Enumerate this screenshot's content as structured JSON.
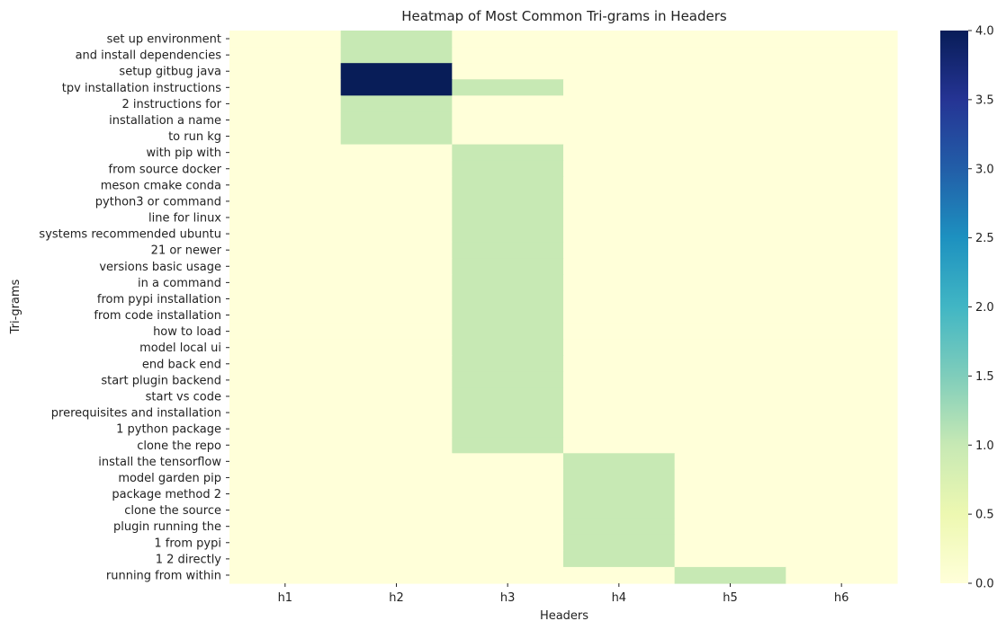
{
  "chart_data": {
    "type": "heatmap",
    "title": "Heatmap of Most Common Tri-grams in Headers",
    "xlabel": "Headers",
    "ylabel": "Tri-grams",
    "columns": [
      "h1",
      "h2",
      "h3",
      "h4",
      "h5",
      "h6"
    ],
    "rows": [
      "set up environment",
      "and install dependencies",
      "setup gitbug java",
      "tpv installation instructions",
      "2 instructions for",
      "installation a name",
      "to run kg",
      "with pip with",
      "from source docker",
      "meson cmake conda",
      "python3 or command",
      "line for linux",
      "systems recommended ubuntu",
      "21 or newer",
      "versions basic usage",
      "in a command",
      "from pypi installation",
      "from code installation",
      "how to load",
      "model local ui",
      "end back end",
      "start plugin backend",
      "start vs code",
      "prerequisites and installation",
      "1 python package",
      "clone the repo",
      "install the tensorflow",
      "model garden pip",
      "package method 2",
      "clone the source",
      "plugin running the",
      "1 from pypi",
      "1 2 directly",
      "running from within"
    ],
    "values": [
      [
        0,
        1,
        0,
        0,
        0,
        0
      ],
      [
        0,
        1,
        0,
        0,
        0,
        0
      ],
      [
        0,
        4,
        0,
        0,
        0,
        0
      ],
      [
        0,
        4,
        1,
        0,
        0,
        0
      ],
      [
        0,
        1,
        0,
        0,
        0,
        0
      ],
      [
        0,
        1,
        0,
        0,
        0,
        0
      ],
      [
        0,
        1,
        0,
        0,
        0,
        0
      ],
      [
        0,
        0,
        1,
        0,
        0,
        0
      ],
      [
        0,
        0,
        1,
        0,
        0,
        0
      ],
      [
        0,
        0,
        1,
        0,
        0,
        0
      ],
      [
        0,
        0,
        1,
        0,
        0,
        0
      ],
      [
        0,
        0,
        1,
        0,
        0,
        0
      ],
      [
        0,
        0,
        1,
        0,
        0,
        0
      ],
      [
        0,
        0,
        1,
        0,
        0,
        0
      ],
      [
        0,
        0,
        1,
        0,
        0,
        0
      ],
      [
        0,
        0,
        1,
        0,
        0,
        0
      ],
      [
        0,
        0,
        1,
        0,
        0,
        0
      ],
      [
        0,
        0,
        1,
        0,
        0,
        0
      ],
      [
        0,
        0,
        1,
        0,
        0,
        0
      ],
      [
        0,
        0,
        1,
        0,
        0,
        0
      ],
      [
        0,
        0,
        1,
        0,
        0,
        0
      ],
      [
        0,
        0,
        1,
        0,
        0,
        0
      ],
      [
        0,
        0,
        1,
        0,
        0,
        0
      ],
      [
        0,
        0,
        1,
        0,
        0,
        0
      ],
      [
        0,
        0,
        1,
        0,
        0,
        0
      ],
      [
        0,
        0,
        1,
        0,
        0,
        0
      ],
      [
        0,
        0,
        0,
        1,
        0,
        0
      ],
      [
        0,
        0,
        0,
        1,
        0,
        0
      ],
      [
        0,
        0,
        0,
        1,
        0,
        0
      ],
      [
        0,
        0,
        0,
        1,
        0,
        0
      ],
      [
        0,
        0,
        0,
        1,
        0,
        0
      ],
      [
        0,
        0,
        0,
        1,
        0,
        0
      ],
      [
        0,
        0,
        0,
        1,
        0,
        0
      ],
      [
        0,
        0,
        0,
        0,
        1,
        0
      ]
    ],
    "colorbar": {
      "colormap": "YlGnBu",
      "range": [
        0.0,
        4.0
      ],
      "ticks": [
        0.0,
        0.5,
        1.0,
        1.5,
        2.0,
        2.5,
        3.0,
        3.5,
        4.0
      ],
      "tick_labels": [
        "0.0",
        "0.5",
        "1.0",
        "1.5",
        "2.0",
        "2.5",
        "3.0",
        "3.5",
        "4.0"
      ]
    },
    "grid": false,
    "legend": "colorbar-right"
  }
}
